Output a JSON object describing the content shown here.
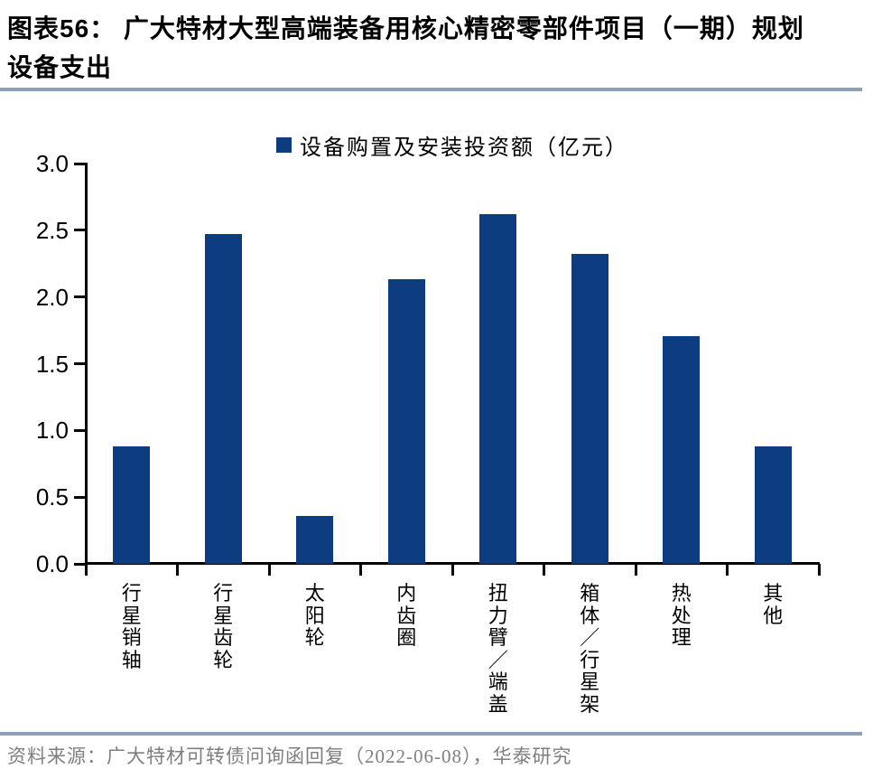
{
  "title": {
    "line1": "图表56：  广大特材大型高端装备用核心精密零部件项目（一期）规划",
    "line2": "设备支出"
  },
  "footer": {
    "source": "资料来源：广大特材可转债问询函回复（2022-06-08），华泰研究"
  },
  "colors": {
    "bar": "#0d3c80",
    "axis": "#000000",
    "rule": "#8da0b9",
    "footer_text": "#7f7f7f"
  },
  "chart_data": {
    "type": "bar",
    "title": "",
    "legend": "设备购置及安装投资额（亿元）",
    "legend_position": "top-center",
    "categories": [
      "行星销轴",
      "行星齿轮",
      "太阳轮",
      "内齿圈",
      "扭力臂/端盖",
      "箱体/行星架",
      "热处理",
      "其他"
    ],
    "values": [
      0.88,
      2.47,
      0.36,
      2.13,
      2.62,
      2.32,
      1.71,
      0.88
    ],
    "xlabel": "",
    "ylabel": "",
    "ylim": [
      0.0,
      3.0
    ],
    "yticks": [
      0.0,
      0.5,
      1.0,
      1.5,
      2.0,
      2.5,
      3.0
    ],
    "grid": false
  }
}
